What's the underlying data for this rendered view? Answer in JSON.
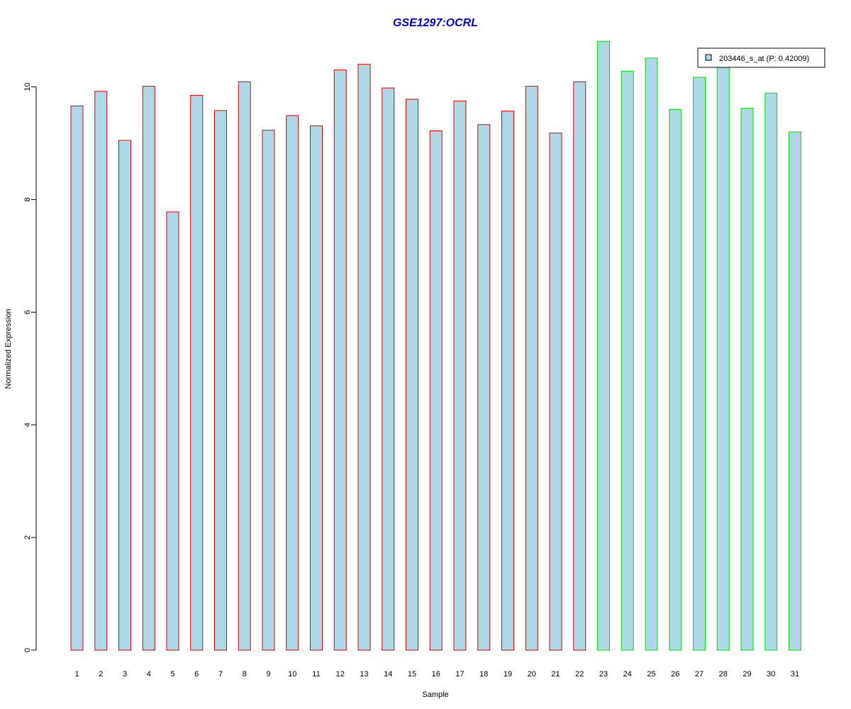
{
  "chart_data": {
    "type": "bar",
    "title": "GSE1297:OCRL",
    "xlabel": "Sample",
    "ylabel": "Normalized Expression",
    "categories": [
      "1",
      "2",
      "3",
      "4",
      "5",
      "6",
      "7",
      "8",
      "9",
      "10",
      "11",
      "12",
      "13",
      "14",
      "15",
      "16",
      "17",
      "18",
      "19",
      "20",
      "21",
      "22",
      "23",
      "24",
      "25",
      "26",
      "27",
      "28",
      "29",
      "30",
      "31"
    ],
    "values": [
      9.66,
      9.92,
      9.05,
      10.01,
      7.78,
      9.85,
      9.58,
      10.09,
      9.23,
      9.49,
      9.31,
      10.3,
      10.4,
      9.98,
      9.78,
      9.22,
      9.75,
      9.33,
      9.57,
      10.01,
      9.18,
      10.09,
      10.81,
      10.28,
      10.51,
      9.6,
      10.17,
      10.42,
      9.62,
      9.89,
      9.2
    ],
    "groups": [
      "red",
      "red",
      "red",
      "red",
      "red",
      "red",
      "red",
      "red",
      "red",
      "red",
      "red",
      "red",
      "red",
      "red",
      "red",
      "red",
      "red",
      "red",
      "red",
      "red",
      "red",
      "red",
      "green",
      "green",
      "green",
      "green",
      "green",
      "green",
      "green",
      "green",
      "green"
    ],
    "yticks": [
      0,
      2,
      4,
      6,
      8,
      10
    ],
    "ylim": [
      0,
      10.81
    ],
    "legend": {
      "label": "203446_s_at (P: 0.42009)",
      "position": "top-right"
    },
    "grid": false,
    "colors": {
      "title": "#0000CC",
      "bar_fill": "#ADD8E6",
      "border_red": "#E00000",
      "border_green": "#00E000",
      "axis": "#000000"
    }
  }
}
